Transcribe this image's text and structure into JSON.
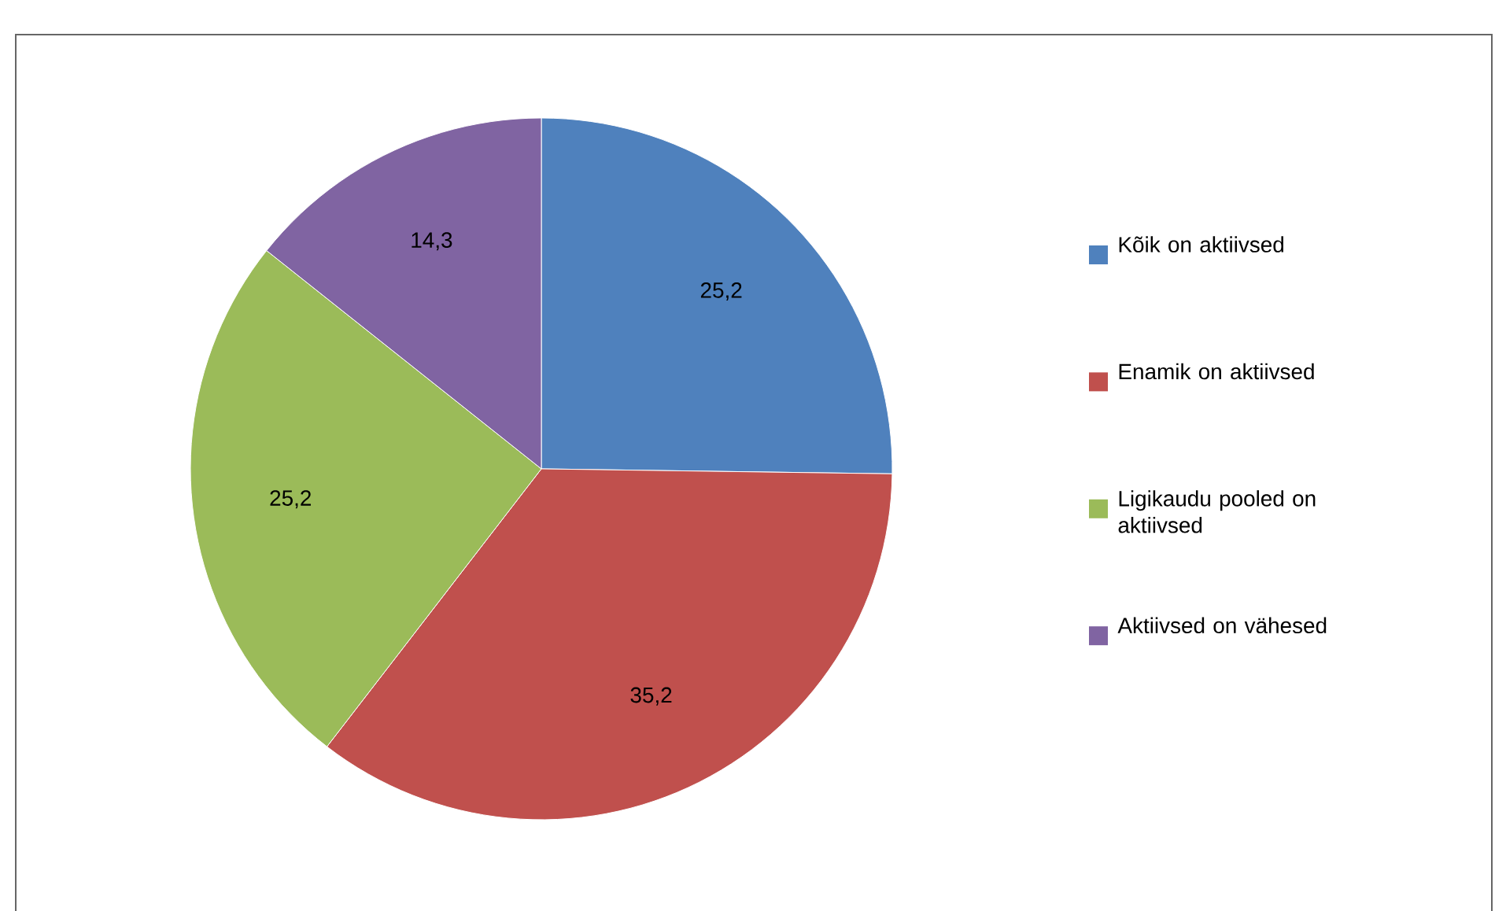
{
  "chart_data": {
    "type": "pie",
    "categories": [
      "Kõik on aktiivsed",
      "Enamik on aktiivsed",
      "Ligikaudu pooled on aktiivsed",
      "Aktiivsed on vähesed"
    ],
    "values": [
      25.2,
      35.2,
      25.2,
      14.3
    ],
    "colors": [
      "#4f81bd",
      "#c0504d",
      "#9bbb59",
      "#8064a2"
    ],
    "value_labels": [
      "25,2",
      "35,2",
      "25,2",
      "14,3"
    ],
    "legend": "right"
  }
}
